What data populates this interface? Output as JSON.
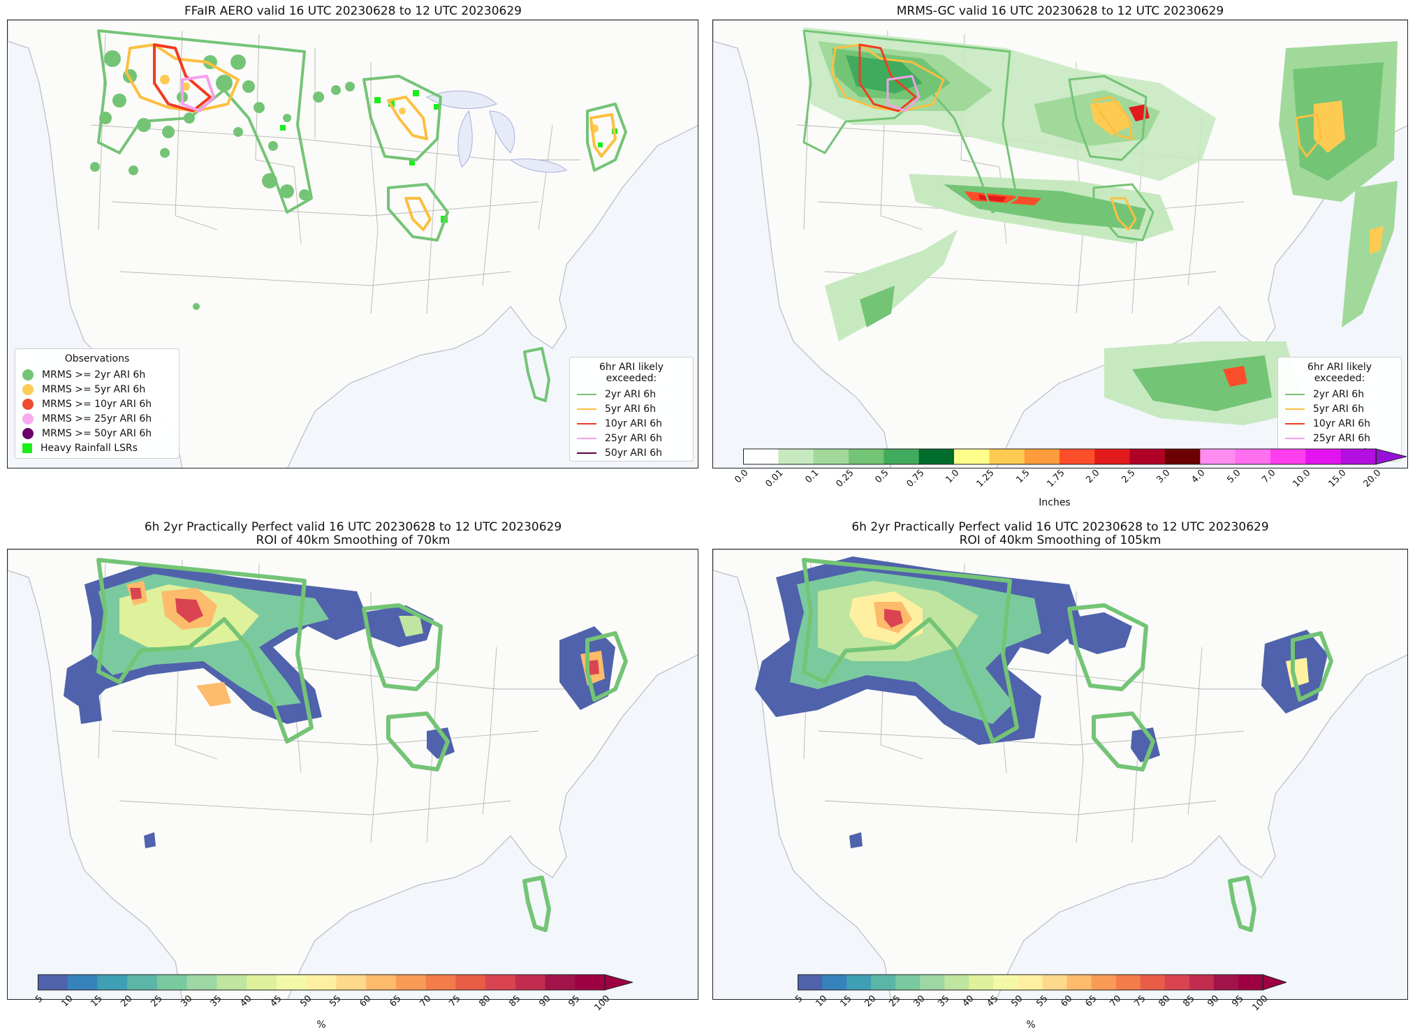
{
  "panels": [
    {
      "title": "FFaIR AERO valid 16 UTC 20230628 to 12 UTC 20230629"
    },
    {
      "title": "MRMS-GC valid 16 UTC 20230628 to 12 UTC 20230629"
    },
    {
      "title": "6h 2yr Practically Perfect valid 16 UTC 20230628 to 12 UTC 20230629",
      "subtitle": "ROI of 40km Smoothing of 70km"
    },
    {
      "title": "6h 2yr Practically Perfect valid 16 UTC 20230628 to 12 UTC 20230629",
      "subtitle": "ROI of 40km Smoothing of 105km"
    }
  ],
  "observations_legend": {
    "title": "Observations",
    "items": [
      {
        "label": "MRMS >= 2yr ARI 6h",
        "color": "#74c476",
        "marker": "circle"
      },
      {
        "label": "MRMS >= 5yr ARI 6h",
        "color": "#fdcb55",
        "marker": "circle"
      },
      {
        "label": "MRMS >= 10yr ARI 6h",
        "color": "#f04a30",
        "marker": "circle"
      },
      {
        "label": "MRMS >= 25yr ARI 6h",
        "color": "#f9a9f0",
        "marker": "circle"
      },
      {
        "label": "MRMS >= 50yr ARI 6h",
        "color": "#6a0068",
        "marker": "circle"
      },
      {
        "label": "Heavy Rainfall LSRs",
        "color": "#19f019",
        "marker": "square"
      }
    ]
  },
  "ari_legend": {
    "title": "6hr ARI likely exceeded:",
    "items": [
      {
        "label": "2yr ARI 6h",
        "color": "#74c476"
      },
      {
        "label": "5yr ARI 6h",
        "color": "#fdbf40"
      },
      {
        "label": "10yr ARI 6h",
        "color": "#f03c20"
      },
      {
        "label": "25yr ARI 6h",
        "color": "#f5a0ec"
      },
      {
        "label": "50yr ARI 6h",
        "color": "#5a0040"
      }
    ]
  },
  "precip_colorbar": {
    "label": "Inches",
    "ticks": [
      "0.0",
      "0.01",
      "0.1",
      "0.25",
      "0.5",
      "0.75",
      "1.0",
      "1.25",
      "1.5",
      "1.75",
      "2.0",
      "2.5",
      "3.0",
      "4.0",
      "5.0",
      "7.0",
      "10.0",
      "15.0",
      "20.0"
    ],
    "colors": [
      "#ffffff",
      "#c7e9c0",
      "#a1d99b",
      "#74c476",
      "#41ab5d",
      "#006d2c",
      "#ffff8c",
      "#fecb52",
      "#fd9c3c",
      "#fc4e2a",
      "#e31a1c",
      "#b10026",
      "#6a0000",
      "#ff8cf0",
      "#ff6ff0",
      "#ff3ef0",
      "#e414f0",
      "#b30fe0"
    ],
    "extend_color": "#9610d8"
  },
  "pct_colorbar": {
    "label": "%",
    "ticks": [
      "5",
      "10",
      "15",
      "20",
      "25",
      "30",
      "35",
      "40",
      "45",
      "50",
      "55",
      "60",
      "65",
      "70",
      "75",
      "80",
      "85",
      "90",
      "95",
      "100"
    ],
    "colors": [
      "#4f62ab",
      "#3682ba",
      "#3f9fb5",
      "#5cb6a8",
      "#7bca9f",
      "#9dd7a4",
      "#bfe5a0",
      "#dff19a",
      "#f3f9a6",
      "#fef0a0",
      "#fed98b",
      "#fdbb6c",
      "#f99b57",
      "#f37c4a",
      "#e95d47",
      "#d94450",
      "#c22d4f",
      "#a1144a",
      "#9e0142"
    ],
    "extend_color": "#9e0142"
  }
}
